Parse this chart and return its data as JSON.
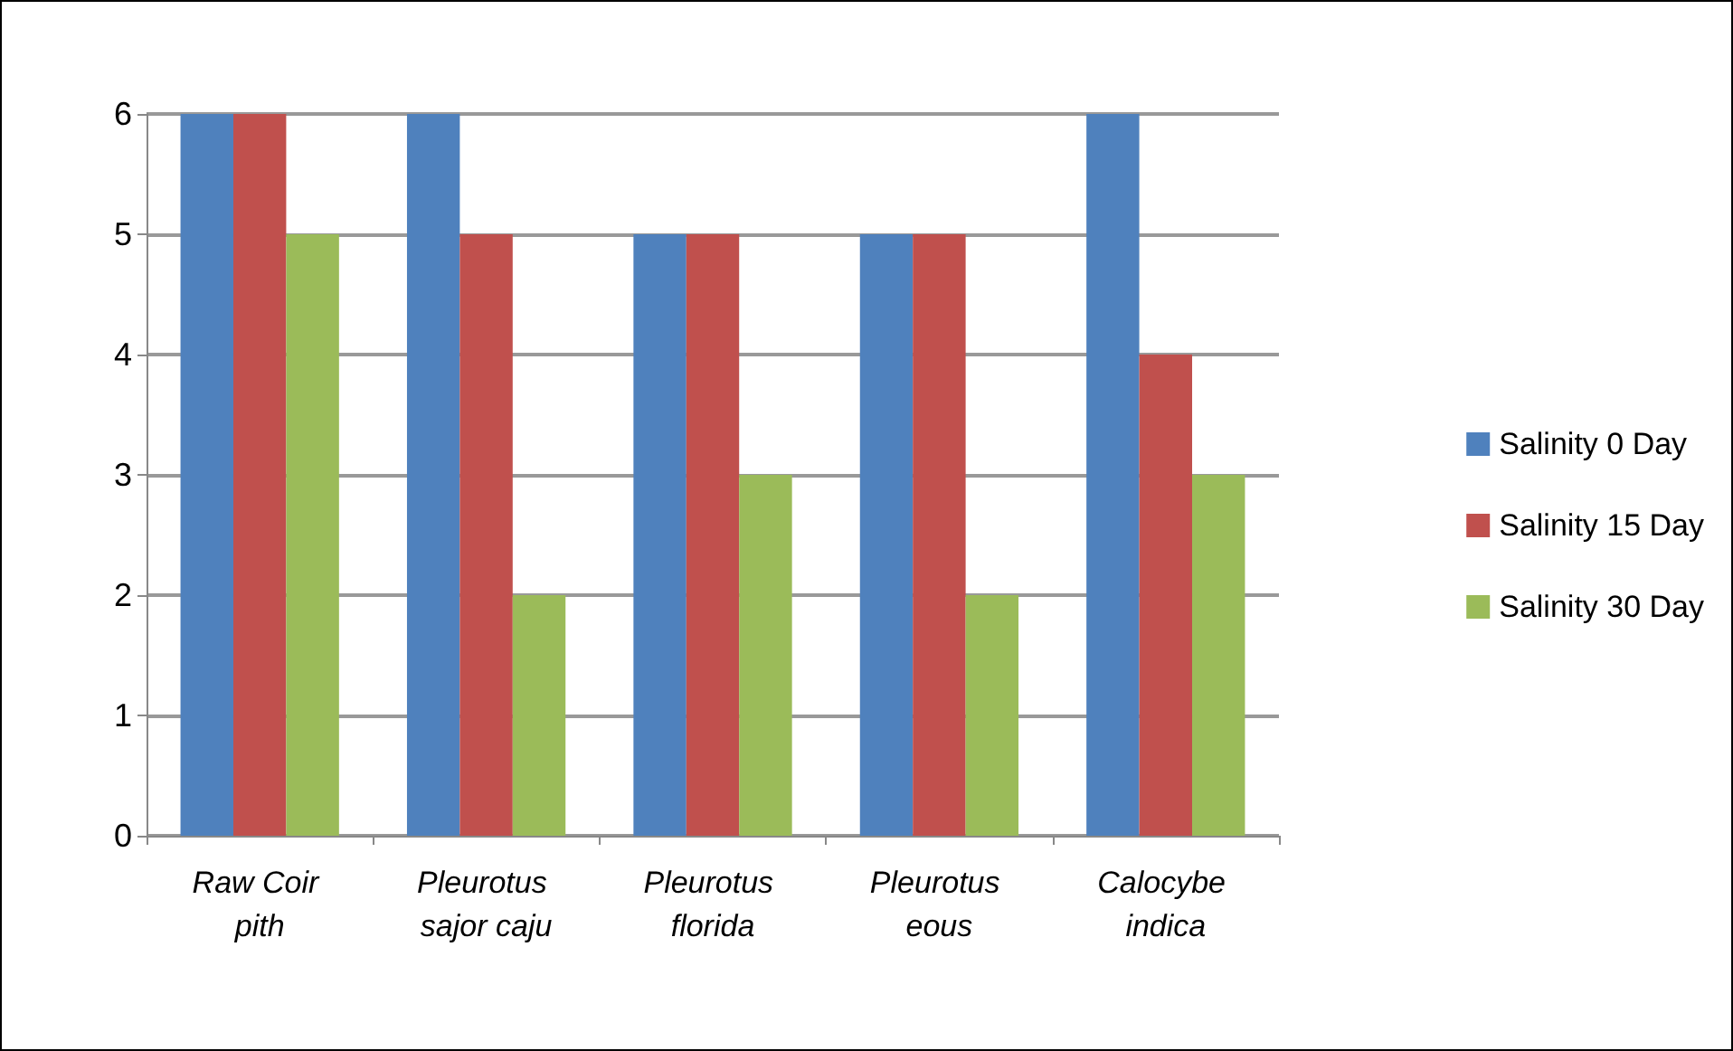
{
  "chart_data": {
    "type": "bar",
    "categories": [
      "Raw Coir pith",
      "Pleurotus sajor caju",
      "Pleurotus florida",
      "Pleurotus eous",
      "Calocybe indica"
    ],
    "series": [
      {
        "name": "Salinity 0 Day",
        "color": "#4f81bd",
        "values": [
          6,
          6,
          5,
          5,
          6
        ]
      },
      {
        "name": "Salinity 15 Day",
        "color": "#c0504d",
        "values": [
          6,
          5,
          5,
          5,
          4
        ]
      },
      {
        "name": "Salinity 30 Day",
        "color": "#9bbb59",
        "values": [
          5,
          2,
          3,
          2,
          3
        ]
      }
    ],
    "ylim": [
      0,
      6
    ],
    "yticks": [
      0,
      1,
      2,
      3,
      4,
      5,
      6
    ],
    "grid": "y",
    "legend": "right"
  }
}
